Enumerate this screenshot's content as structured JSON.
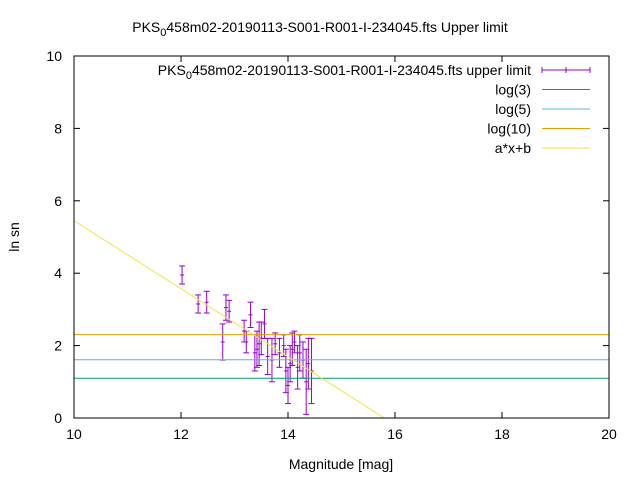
{
  "chart_data": {
    "type": "scatter",
    "title_parts": [
      "PKS",
      "0",
      "458m02-20190113-S001-R001-I-234045.fts Upper limit"
    ],
    "xlabel": "Magnitude [mag]",
    "ylabel": "ln sn",
    "xlim": [
      10,
      20
    ],
    "ylim": [
      0,
      10
    ],
    "xticks": [
      10,
      12,
      14,
      16,
      18,
      20
    ],
    "yticks": [
      0,
      2,
      4,
      6,
      8,
      10
    ],
    "grid": false,
    "legend_position": "top-right",
    "series": [
      {
        "name_parts": [
          "PKS",
          "0",
          "458m02-20190113-S001-R001-I-234045.fts upper limit"
        ],
        "kind": "errorbar",
        "color": "#9400d3",
        "points": [
          {
            "x": 12.02,
            "y": 3.95,
            "err": 0.25
          },
          {
            "x": 12.32,
            "y": 3.15,
            "err": 0.25
          },
          {
            "x": 12.48,
            "y": 3.2,
            "err": 0.3
          },
          {
            "x": 12.78,
            "y": 2.1,
            "err": 0.5
          },
          {
            "x": 12.84,
            "y": 3.05,
            "err": 0.35
          },
          {
            "x": 12.9,
            "y": 2.95,
            "err": 0.3
          },
          {
            "x": 13.18,
            "y": 2.4,
            "err": 0.3
          },
          {
            "x": 13.22,
            "y": 2.1,
            "err": 0.3
          },
          {
            "x": 13.3,
            "y": 2.85,
            "err": 0.35
          },
          {
            "x": 13.38,
            "y": 1.8,
            "err": 0.5
          },
          {
            "x": 13.42,
            "y": 1.9,
            "err": 0.5
          },
          {
            "x": 13.46,
            "y": 2.05,
            "err": 0.6
          },
          {
            "x": 13.5,
            "y": 2.2,
            "err": 0.45
          },
          {
            "x": 13.56,
            "y": 2.6,
            "err": 0.4
          },
          {
            "x": 13.62,
            "y": 1.7,
            "err": 0.5
          },
          {
            "x": 13.7,
            "y": 1.6,
            "err": 0.6
          },
          {
            "x": 13.76,
            "y": 2.05,
            "err": 0.3
          },
          {
            "x": 13.84,
            "y": 1.8,
            "err": 0.4
          },
          {
            "x": 13.92,
            "y": 2.0,
            "err": 0.3
          },
          {
            "x": 13.96,
            "y": 1.3,
            "err": 0.6
          },
          {
            "x": 14.0,
            "y": 0.9,
            "err": 0.5
          },
          {
            "x": 14.04,
            "y": 1.5,
            "err": 0.5
          },
          {
            "x": 14.08,
            "y": 1.9,
            "err": 0.45
          },
          {
            "x": 14.12,
            "y": 2.1,
            "err": 0.3
          },
          {
            "x": 14.18,
            "y": 1.4,
            "err": 0.6
          },
          {
            "x": 14.22,
            "y": 1.8,
            "err": 0.5
          },
          {
            "x": 14.28,
            "y": 1.6,
            "err": 0.5
          },
          {
            "x": 14.34,
            "y": 1.0,
            "err": 0.9
          },
          {
            "x": 14.38,
            "y": 1.5,
            "err": 0.7
          },
          {
            "x": 14.44,
            "y": 1.3,
            "err": 0.9
          }
        ]
      },
      {
        "name": "log(3)",
        "kind": "hline",
        "y": 1.0986,
        "color": "#009e73"
      },
      {
        "name": "log(5)",
        "kind": "hline",
        "y": 1.6094,
        "color": "#56b4e9"
      },
      {
        "name": "log(10)",
        "kind": "hline",
        "y": 2.3026,
        "color": "#e69f00"
      },
      {
        "name": "a*x+b",
        "kind": "line",
        "points": [
          [
            10,
            5.45
          ],
          [
            15.8,
            0
          ]
        ],
        "color": "#f0e442"
      }
    ]
  }
}
